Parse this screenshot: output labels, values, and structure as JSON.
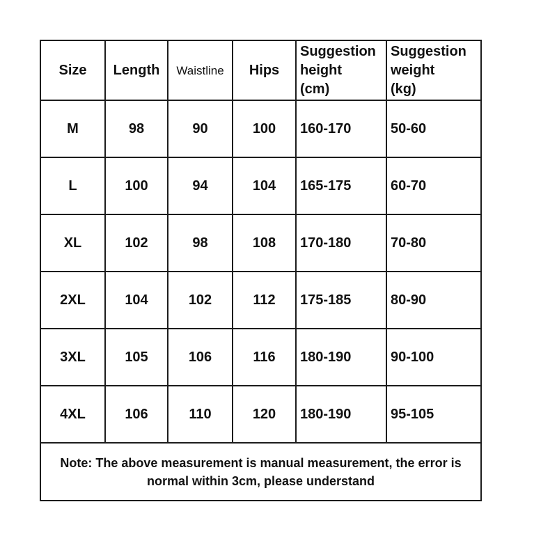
{
  "page": {
    "background_color": "#ffffff",
    "text_color": "#111111",
    "border_color": "#1c1c1c"
  },
  "chart_data": {
    "type": "table",
    "columns": [
      "Size",
      "Length",
      "Waistline",
      "Hips",
      "Suggestion\nheight\n(cm)",
      "Suggestion\nweight\n(kg)"
    ],
    "rows": [
      [
        "M",
        "98",
        "90",
        "100",
        "160-170",
        "50-60"
      ],
      [
        "L",
        "100",
        "94",
        "104",
        "165-175",
        "60-70"
      ],
      [
        "XL",
        "102",
        "98",
        "108",
        "170-180",
        "70-80"
      ],
      [
        "2XL",
        "104",
        "102",
        "112",
        "175-185",
        "80-90"
      ],
      [
        "3XL",
        "105",
        "106",
        "116",
        "180-190",
        "90-100"
      ],
      [
        "4XL",
        "106",
        "110",
        "120",
        "180-190",
        "95-105"
      ]
    ],
    "note": "Note: The above measurement is manual measurement, the error is normal within 3cm, please understand"
  }
}
